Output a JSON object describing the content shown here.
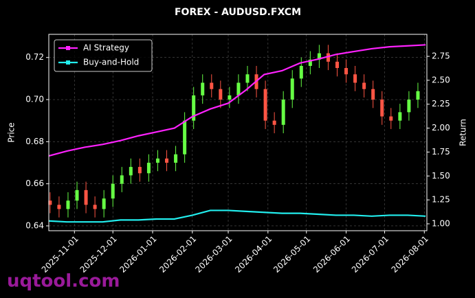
{
  "chart_data": {
    "type": "candlestick",
    "title": "FOREX - AUDUSD.FXCM",
    "ylabel": "Price",
    "y2label": "Return",
    "watermark": "uqtool.com",
    "grid": true,
    "legend": "upper left",
    "up_color": "#66ff44",
    "down_color": "#ff5544",
    "xlim": [
      "2025-10-12",
      "2026-08-03"
    ],
    "xticks": [
      "2025-11-01",
      "2025-12-01",
      "2026-01-01",
      "2026-02-01",
      "2026-03-01",
      "2026-04-01",
      "2026-05-01",
      "2026-06-01",
      "2026-07-01",
      "2026-08-01"
    ],
    "ylim": [
      0.6377,
      0.731
    ],
    "yticks": [
      0.64,
      0.66,
      0.68,
      {
        "value": 0.7,
        "label": "0.70"
      },
      0.72
    ],
    "y2lim": [
      0.928,
      2.98
    ],
    "y2ticks": [
      {
        "value": 1,
        "label": "1.00"
      },
      1.25,
      {
        "value": 1.5,
        "label": "1.50"
      },
      1.75,
      {
        "value": 2,
        "label": "2.00"
      },
      2.25,
      {
        "value": 2.5,
        "label": "2.50"
      },
      2.75
    ],
    "candles": {
      "x": [
        "2025-10-13",
        "2025-10-20",
        "2025-10-27",
        "2025-11-03",
        "2025-11-10",
        "2025-11-17",
        "2025-11-24",
        "2025-12-01",
        "2025-12-08",
        "2025-12-15",
        "2025-12-22",
        "2025-12-29",
        "2026-01-05",
        "2026-01-12",
        "2026-01-19",
        "2026-01-26",
        "2026-02-02",
        "2026-02-09",
        "2026-02-16",
        "2026-02-23",
        "2026-03-02",
        "2026-03-09",
        "2026-03-16",
        "2026-03-23",
        "2026-03-30",
        "2026-04-06",
        "2026-04-13",
        "2026-04-20",
        "2026-04-27",
        "2026-05-04",
        "2026-05-11",
        "2026-05-18",
        "2026-05-25",
        "2026-06-01",
        "2026-06-08",
        "2026-06-15",
        "2026-06-22",
        "2026-06-29",
        "2026-07-06",
        "2026-07-13",
        "2026-07-20",
        "2026-07-27"
      ],
      "open": [
        0.652,
        0.65,
        0.648,
        0.652,
        0.657,
        0.65,
        0.648,
        0.653,
        0.66,
        0.664,
        0.668,
        0.665,
        0.67,
        0.672,
        0.67,
        0.674,
        0.69,
        0.702,
        0.708,
        0.705,
        0.7,
        0.702,
        0.708,
        0.712,
        0.705,
        0.69,
        0.688,
        0.7,
        0.71,
        0.716,
        0.719,
        0.722,
        0.718,
        0.715,
        0.712,
        0.708,
        0.705,
        0.7,
        0.692,
        0.69,
        0.694,
        0.7
      ],
      "high": [
        0.656,
        0.654,
        0.656,
        0.661,
        0.661,
        0.654,
        0.657,
        0.664,
        0.668,
        0.672,
        0.672,
        0.674,
        0.676,
        0.676,
        0.678,
        0.694,
        0.706,
        0.712,
        0.712,
        0.709,
        0.706,
        0.712,
        0.716,
        0.716,
        0.709,
        0.694,
        0.704,
        0.714,
        0.72,
        0.723,
        0.726,
        0.726,
        0.722,
        0.719,
        0.716,
        0.712,
        0.709,
        0.704,
        0.696,
        0.698,
        0.704,
        0.708
      ],
      "low": [
        0.646,
        0.644,
        0.644,
        0.648,
        0.646,
        0.644,
        0.644,
        0.649,
        0.656,
        0.66,
        0.661,
        0.661,
        0.666,
        0.666,
        0.666,
        0.67,
        0.686,
        0.698,
        0.701,
        0.696,
        0.696,
        0.698,
        0.704,
        0.701,
        0.686,
        0.684,
        0.684,
        0.696,
        0.706,
        0.712,
        0.715,
        0.714,
        0.711,
        0.708,
        0.704,
        0.701,
        0.696,
        0.688,
        0.686,
        0.686,
        0.69,
        0.696
      ],
      "close": [
        0.65,
        0.648,
        0.652,
        0.657,
        0.65,
        0.648,
        0.653,
        0.66,
        0.664,
        0.668,
        0.665,
        0.67,
        0.672,
        0.67,
        0.674,
        0.69,
        0.702,
        0.708,
        0.705,
        0.7,
        0.702,
        0.708,
        0.712,
        0.705,
        0.69,
        0.688,
        0.7,
        0.71,
        0.716,
        0.719,
        0.722,
        0.718,
        0.715,
        0.712,
        0.708,
        0.705,
        0.7,
        0.692,
        0.69,
        0.694,
        0.7,
        0.704
      ]
    },
    "x": [
      "2025-10-12",
      "2025-10-26",
      "2025-11-09",
      "2025-11-23",
      "2025-12-07",
      "2025-12-21",
      "2026-01-04",
      "2026-01-18",
      "2026-02-01",
      "2026-02-15",
      "2026-03-01",
      "2026-03-15",
      "2026-03-29",
      "2026-04-12",
      "2026-04-26",
      "2026-05-10",
      "2026-05-24",
      "2026-06-07",
      "2026-06-21",
      "2026-07-05",
      "2026-07-19",
      "2026-08-02"
    ],
    "series": [
      {
        "name": "AI Strategy",
        "color": "#ff22ff",
        "axis": "y2",
        "values": [
          1.71,
          1.76,
          1.8,
          1.83,
          1.87,
          1.92,
          1.96,
          2.0,
          2.12,
          2.2,
          2.26,
          2.4,
          2.56,
          2.6,
          2.68,
          2.72,
          2.77,
          2.8,
          2.83,
          2.85,
          2.86,
          2.87
        ]
      },
      {
        "name": "Buy-and-Hold",
        "color": "#22eeee",
        "axis": "y2",
        "values": [
          1.03,
          1.02,
          1.02,
          1.02,
          1.04,
          1.04,
          1.05,
          1.05,
          1.09,
          1.14,
          1.14,
          1.13,
          1.12,
          1.11,
          1.11,
          1.1,
          1.09,
          1.09,
          1.08,
          1.09,
          1.09,
          1.08
        ]
      }
    ]
  }
}
